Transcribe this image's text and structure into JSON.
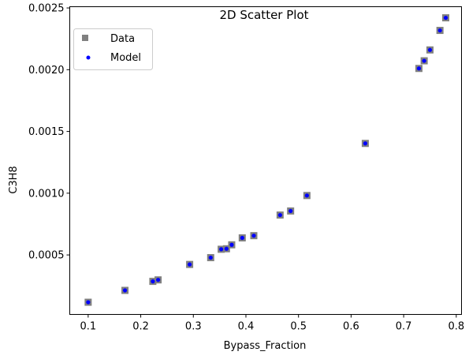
{
  "chart_data": {
    "type": "scatter",
    "title": "2D Scatter Plot",
    "xlabel": "Bypass_Fraction",
    "ylabel": "C3H8",
    "xlim": [
      0.065,
      0.81
    ],
    "ylim": [
      1.83e-05,
      0.00251
    ],
    "x_ticks": [
      0.1,
      0.2,
      0.3,
      0.4,
      0.5,
      0.6,
      0.7,
      0.8
    ],
    "x_tick_labels": [
      "0.1",
      "0.2",
      "0.3",
      "0.4",
      "0.5",
      "0.6",
      "0.7",
      "0.8"
    ],
    "y_ticks": [
      0.0005,
      0.001,
      0.0015,
      0.002,
      0.0025
    ],
    "y_tick_labels": [
      "0.0005",
      "0.0010",
      "0.0015",
      "0.0020",
      "0.0025"
    ],
    "grid": false,
    "legend_position": "top-left",
    "series": [
      {
        "name": "Data",
        "marker": "square",
        "color": "#808080",
        "points": [
          [
            0.1,
            0.000117
          ],
          [
            0.17,
            0.000213
          ],
          [
            0.223,
            0.000286
          ],
          [
            0.233,
            0.000298
          ],
          [
            0.293,
            0.000423
          ],
          [
            0.333,
            0.000478
          ],
          [
            0.353,
            0.000546
          ],
          [
            0.363,
            0.00055
          ],
          [
            0.373,
            0.000582
          ],
          [
            0.393,
            0.000638
          ],
          [
            0.415,
            0.000656
          ],
          [
            0.465,
            0.000823
          ],
          [
            0.485,
            0.000856
          ],
          [
            0.516,
            0.000981
          ],
          [
            0.627,
            0.001403
          ],
          [
            0.729,
            0.00201
          ],
          [
            0.739,
            0.002072
          ],
          [
            0.75,
            0.00216
          ],
          [
            0.769,
            0.002318
          ],
          [
            0.78,
            0.00242
          ]
        ]
      },
      {
        "name": "Model",
        "marker": "circle",
        "color": "#0000ff",
        "points": [
          [
            0.1,
            0.000117
          ],
          [
            0.17,
            0.000213
          ],
          [
            0.223,
            0.000286
          ],
          [
            0.233,
            0.000298
          ],
          [
            0.293,
            0.000423
          ],
          [
            0.333,
            0.000478
          ],
          [
            0.353,
            0.000546
          ],
          [
            0.363,
            0.00055
          ],
          [
            0.373,
            0.000582
          ],
          [
            0.393,
            0.000638
          ],
          [
            0.415,
            0.000656
          ],
          [
            0.465,
            0.000823
          ],
          [
            0.485,
            0.000856
          ],
          [
            0.516,
            0.000981
          ],
          [
            0.627,
            0.001403
          ],
          [
            0.729,
            0.00201
          ],
          [
            0.739,
            0.002072
          ],
          [
            0.75,
            0.00216
          ],
          [
            0.769,
            0.002318
          ],
          [
            0.78,
            0.00242
          ]
        ]
      }
    ]
  }
}
